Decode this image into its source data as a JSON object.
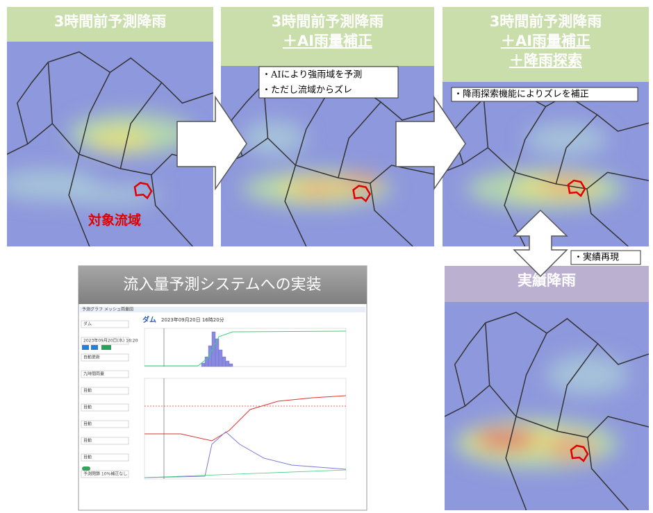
{
  "panels": [
    {
      "title_lines": [
        "3時間前予測降雨"
      ]
    },
    {
      "title_lines": [
        "3時間前予測降雨",
        "＋AI雨量補正"
      ]
    },
    {
      "title_lines": [
        "3時間前予測降雨",
        "＋AI雨量補正",
        "＋降雨探索"
      ]
    },
    {
      "title_lines": [
        "実績降雨"
      ]
    }
  ],
  "notes": {
    "ai": [
      "・AIにより強雨域を予測",
      "・ただし流域からズレ"
    ],
    "search": "・降雨探索機能によりズレを補正",
    "actual": "・実績再現"
  },
  "target_label": "対象流域",
  "system": {
    "title": "流入量予測システムへの実装",
    "tabs": [
      "予測グラフ",
      "メッシュ雨量図"
    ],
    "dam": "ダム",
    "datetime": "2023年09月20日 16時20分",
    "sidebar": [
      "ダム",
      "2023年09月20日(水) 16:20",
      "自動更新",
      "九時間雨量",
      "目動",
      "目動",
      "目動",
      "目動",
      "目動",
      "予測閉鎖 10%補正なし"
    ]
  }
}
